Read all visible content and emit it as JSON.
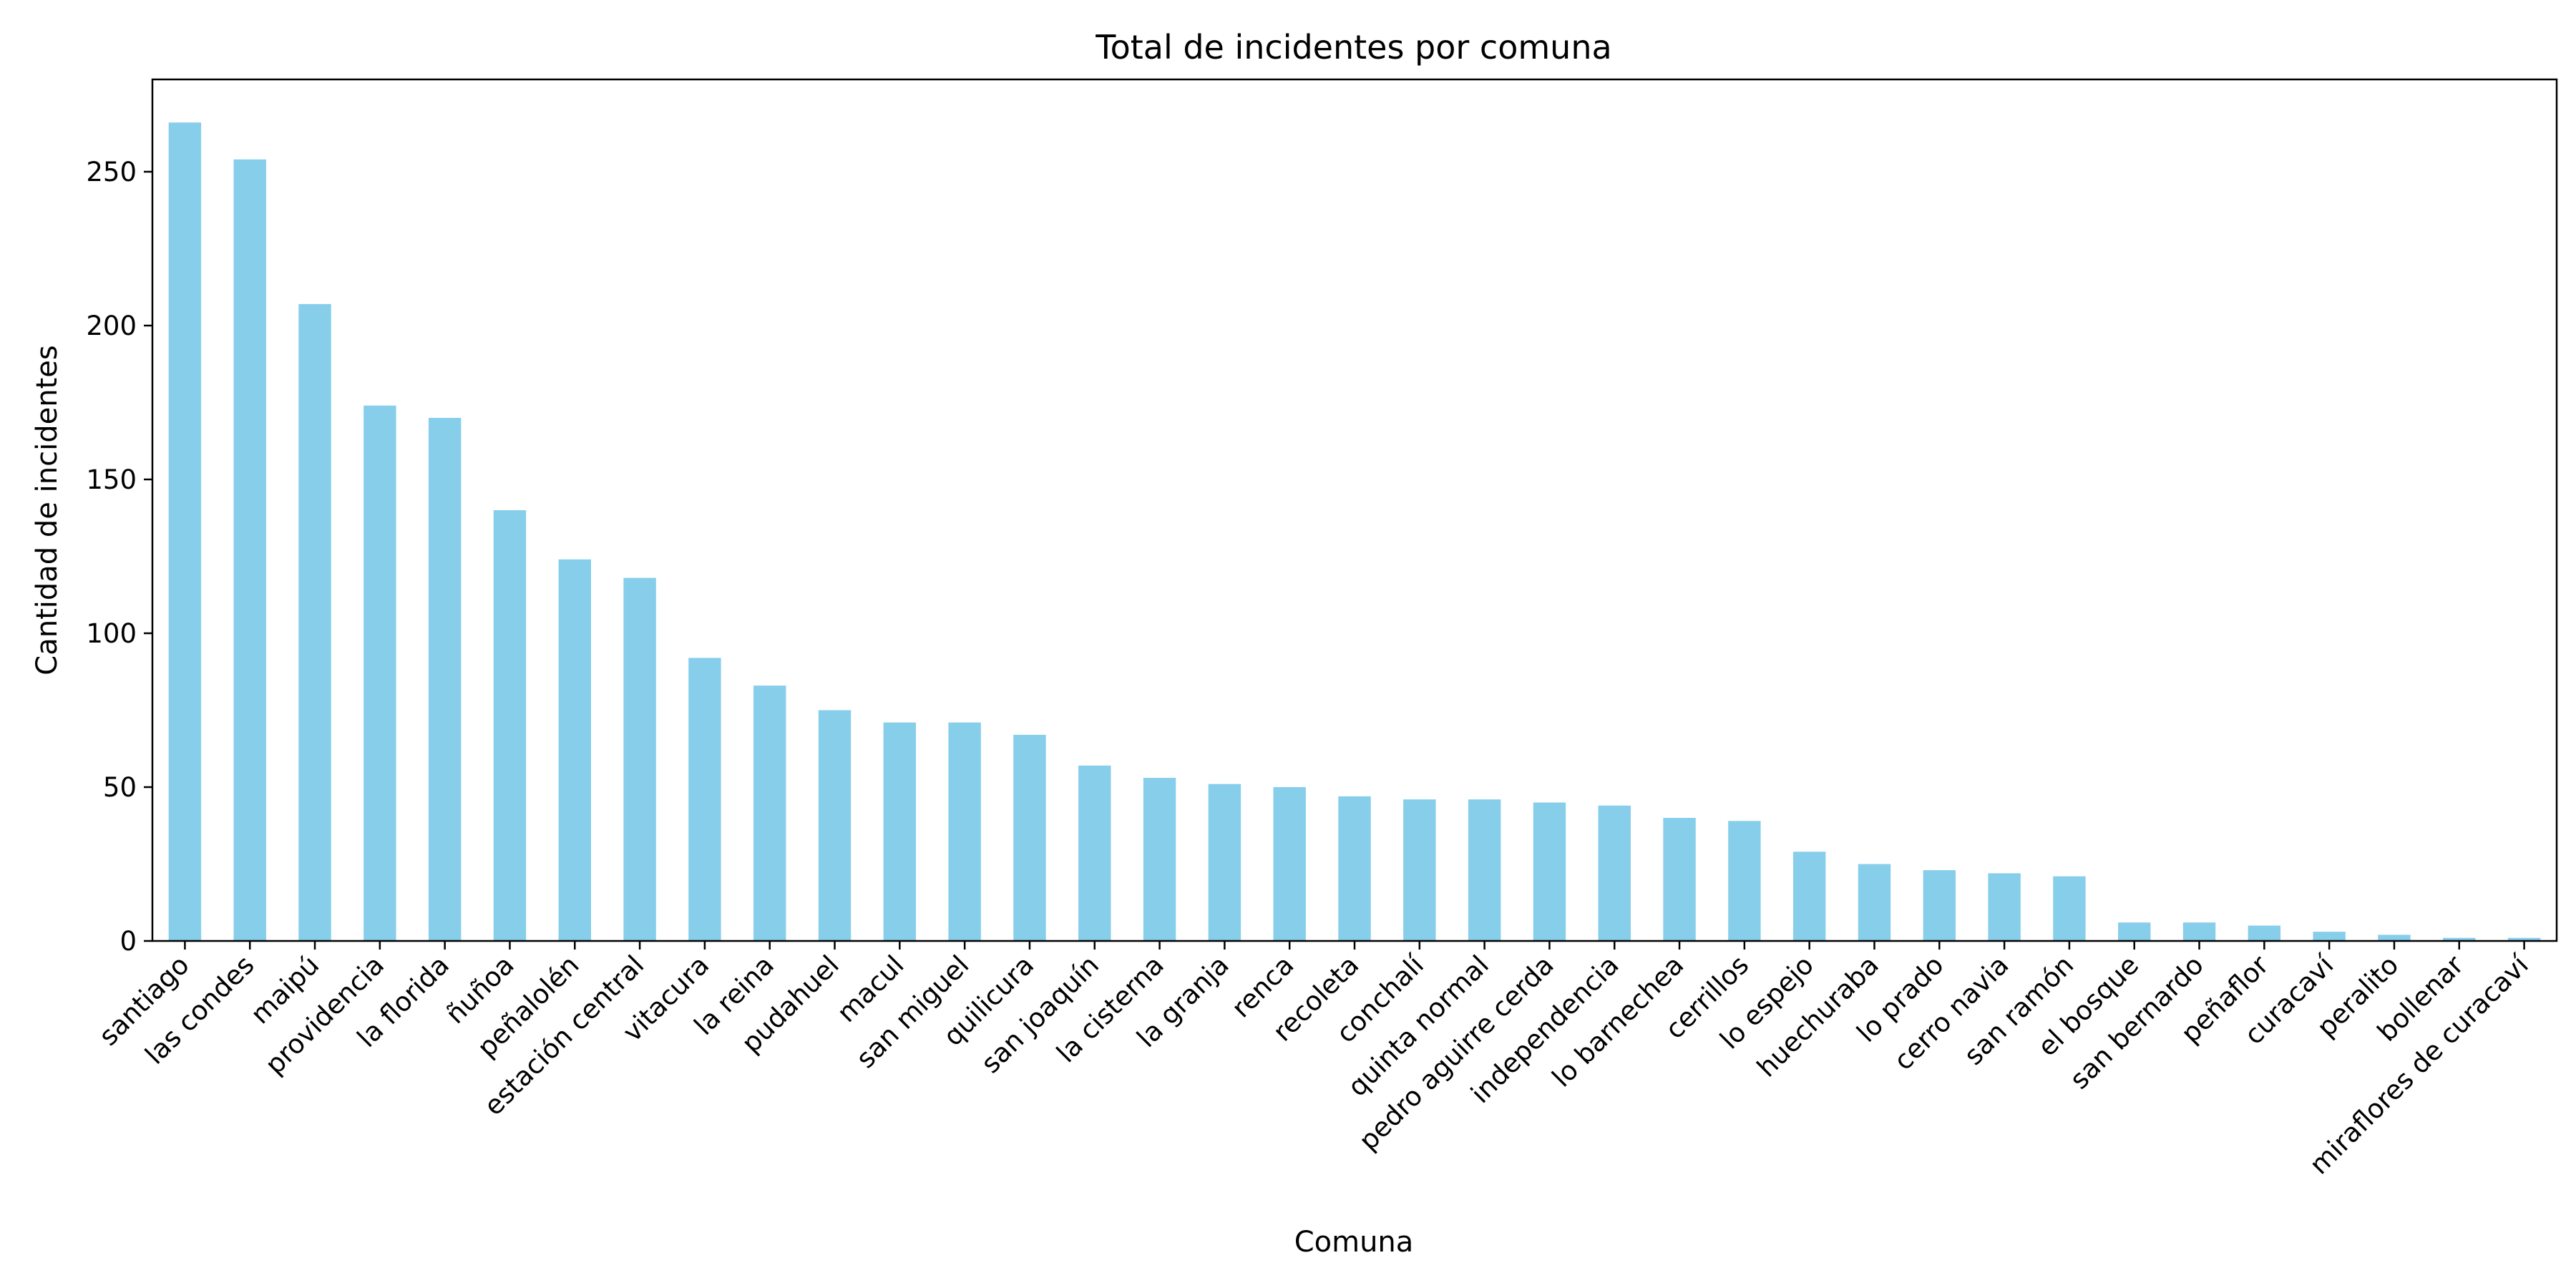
{
  "chart_data": {
    "type": "bar",
    "title": "Total de incidentes por comuna",
    "xlabel": "Comuna",
    "ylabel": "Cantidad de incidentes",
    "ylim": [
      0,
      280
    ],
    "yticks": [
      0,
      50,
      100,
      150,
      200,
      250
    ],
    "grid": false,
    "legend": "none",
    "bar_color": "#87CEEB",
    "categories": [
      "santiago",
      "las condes",
      "maipú",
      "providencia",
      "la florida",
      "ñuñoa",
      "peñalolén",
      "estación central",
      "vitacura",
      "la reina",
      "pudahuel",
      "macul",
      "san miguel",
      "quilicura",
      "san joaquín",
      "la cisterna",
      "la granja",
      "renca",
      "recoleta",
      "conchalí",
      "quinta normal",
      "pedro aguirre cerda",
      "independencia",
      "lo barnechea",
      "cerrillos",
      "lo espejo",
      "huechuraba",
      "lo prado",
      "cerro navia",
      "san ramón",
      "el bosque",
      "san bernardo",
      "peñaflor",
      "curacaví",
      "peralito",
      "bollenar",
      "miraflores de curacaví"
    ],
    "values": [
      266,
      254,
      207,
      174,
      170,
      140,
      124,
      118,
      92,
      83,
      75,
      71,
      71,
      67,
      57,
      53,
      51,
      50,
      47,
      46,
      46,
      45,
      44,
      40,
      39,
      29,
      25,
      23,
      22,
      21,
      6,
      6,
      5,
      3,
      2,
      1,
      1
    ]
  }
}
